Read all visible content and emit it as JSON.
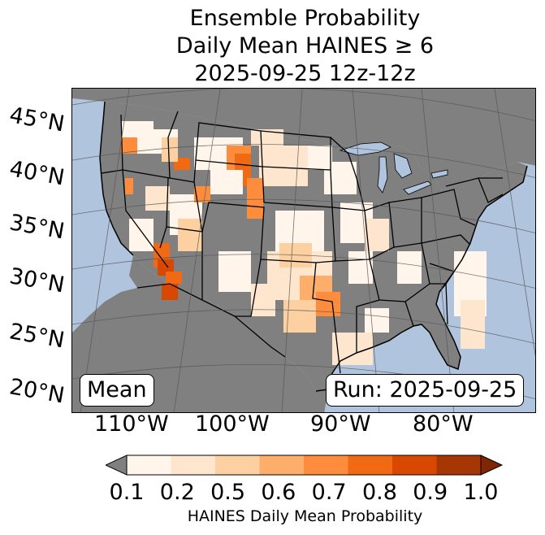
{
  "title": {
    "line1": "Ensemble Probability",
    "line2": "Daily Mean HAINES ≥ 6",
    "line3": "2025-09-25 12z-12z"
  },
  "lat_labels": [
    "45°N",
    "40°N",
    "35°N",
    "30°N",
    "25°N",
    "20°N"
  ],
  "lon_labels": [
    "110°W",
    "100°W",
    "90°W",
    "80°W"
  ],
  "boxes": {
    "mean": "Mean",
    "run": "Run: 2025-09-25"
  },
  "colorbar": {
    "ticks": [
      "0.1",
      "0.2",
      "0.5",
      "0.6",
      "0.7",
      "0.8",
      "0.9",
      "1.0"
    ],
    "colors": [
      "#fff5eb",
      "#fee6ce",
      "#fdd0a2",
      "#fdae6b",
      "#fd8d3c",
      "#f16913",
      "#d94801",
      "#a63603"
    ],
    "under_color": "#808080",
    "over_color": "#7f2704",
    "label": "HAINES Daily Mean Probability"
  },
  "map_colors": {
    "ocean": "#b0c4de",
    "land_masked": "#808080",
    "graticule": "#555555"
  }
}
